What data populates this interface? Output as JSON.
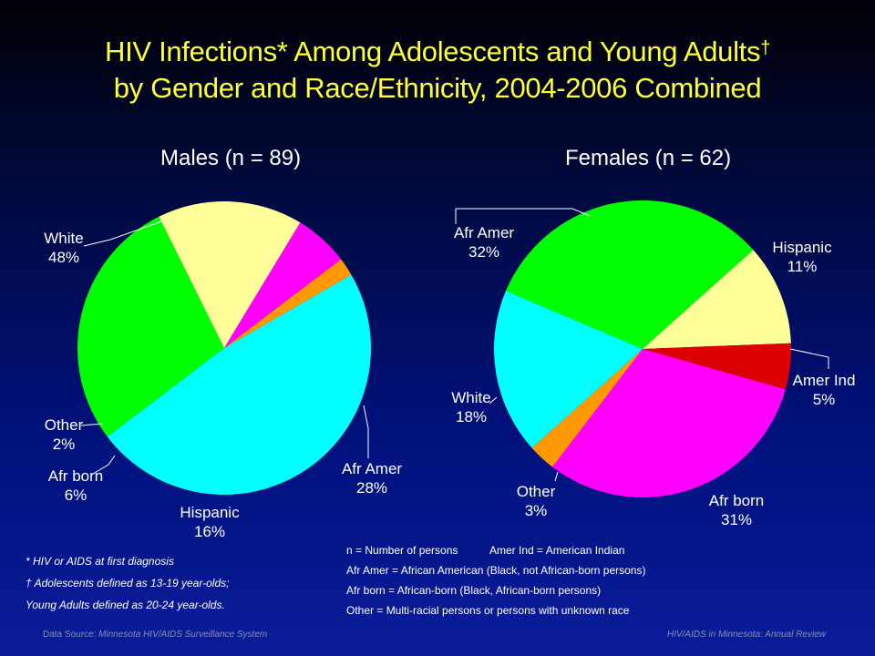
{
  "title": {
    "line1": "HIV Infections* Among Adolescents and Young Adults",
    "line1_mark": "†",
    "line2": "by Gender and Race/Ethnicity, 2004-2006 Combined"
  },
  "chart_data": [
    {
      "type": "pie",
      "title": "Males (n = 89)",
      "slices": [
        {
          "label": "White",
          "value": 48,
          "pct_label": "48%",
          "color": "#00ffff"
        },
        {
          "label": "Afr Amer",
          "value": 28,
          "pct_label": "28%",
          "color": "#00ff00"
        },
        {
          "label": "Hispanic",
          "value": 16,
          "pct_label": "16%",
          "color": "#ffff99"
        },
        {
          "label": "Afr born",
          "value": 6,
          "pct_label": "6%",
          "color": "#ff00ff"
        },
        {
          "label": "Other",
          "value": 2,
          "pct_label": "2%",
          "color": "#ff9900"
        }
      ]
    },
    {
      "type": "pie",
      "title": "Females (n = 62)",
      "slices": [
        {
          "label": "Afr Amer",
          "value": 32,
          "pct_label": "32%",
          "color": "#00ff00"
        },
        {
          "label": "Hispanic",
          "value": 11,
          "pct_label": "11%",
          "color": "#ffff99"
        },
        {
          "label": "Amer Ind",
          "value": 5,
          "pct_label": "5%",
          "color": "#dd0000"
        },
        {
          "label": "Afr born",
          "value": 31,
          "pct_label": "31%",
          "color": "#ff00ff"
        },
        {
          "label": "Other",
          "value": 3,
          "pct_label": "3%",
          "color": "#ff9900"
        },
        {
          "label": "White",
          "value": 18,
          "pct_label": "18%",
          "color": "#00ffff"
        }
      ]
    }
  ],
  "footnotes": {
    "note1": "* HIV or AIDS at first diagnosis",
    "note2": "† Adolescents defined as 13-19 year-olds;",
    "note3": "Young Adults defined as 20-24 year-olds."
  },
  "legend": {
    "n": "n = Number of persons",
    "amer_ind": "Amer Ind = American Indian",
    "afr_amer": "Afr Amer = African American (Black, not African-born persons)",
    "afr_born": "Afr born = African-born (Black, African-born persons)",
    "other": "Other = Multi-racial persons or persons with unknown race"
  },
  "footer": {
    "source_prefix": "Data Source: ",
    "source": "Minnesota HIV/AIDS Surveillance System",
    "right": "HIV/AIDS in Minnesota: Annual Review"
  }
}
